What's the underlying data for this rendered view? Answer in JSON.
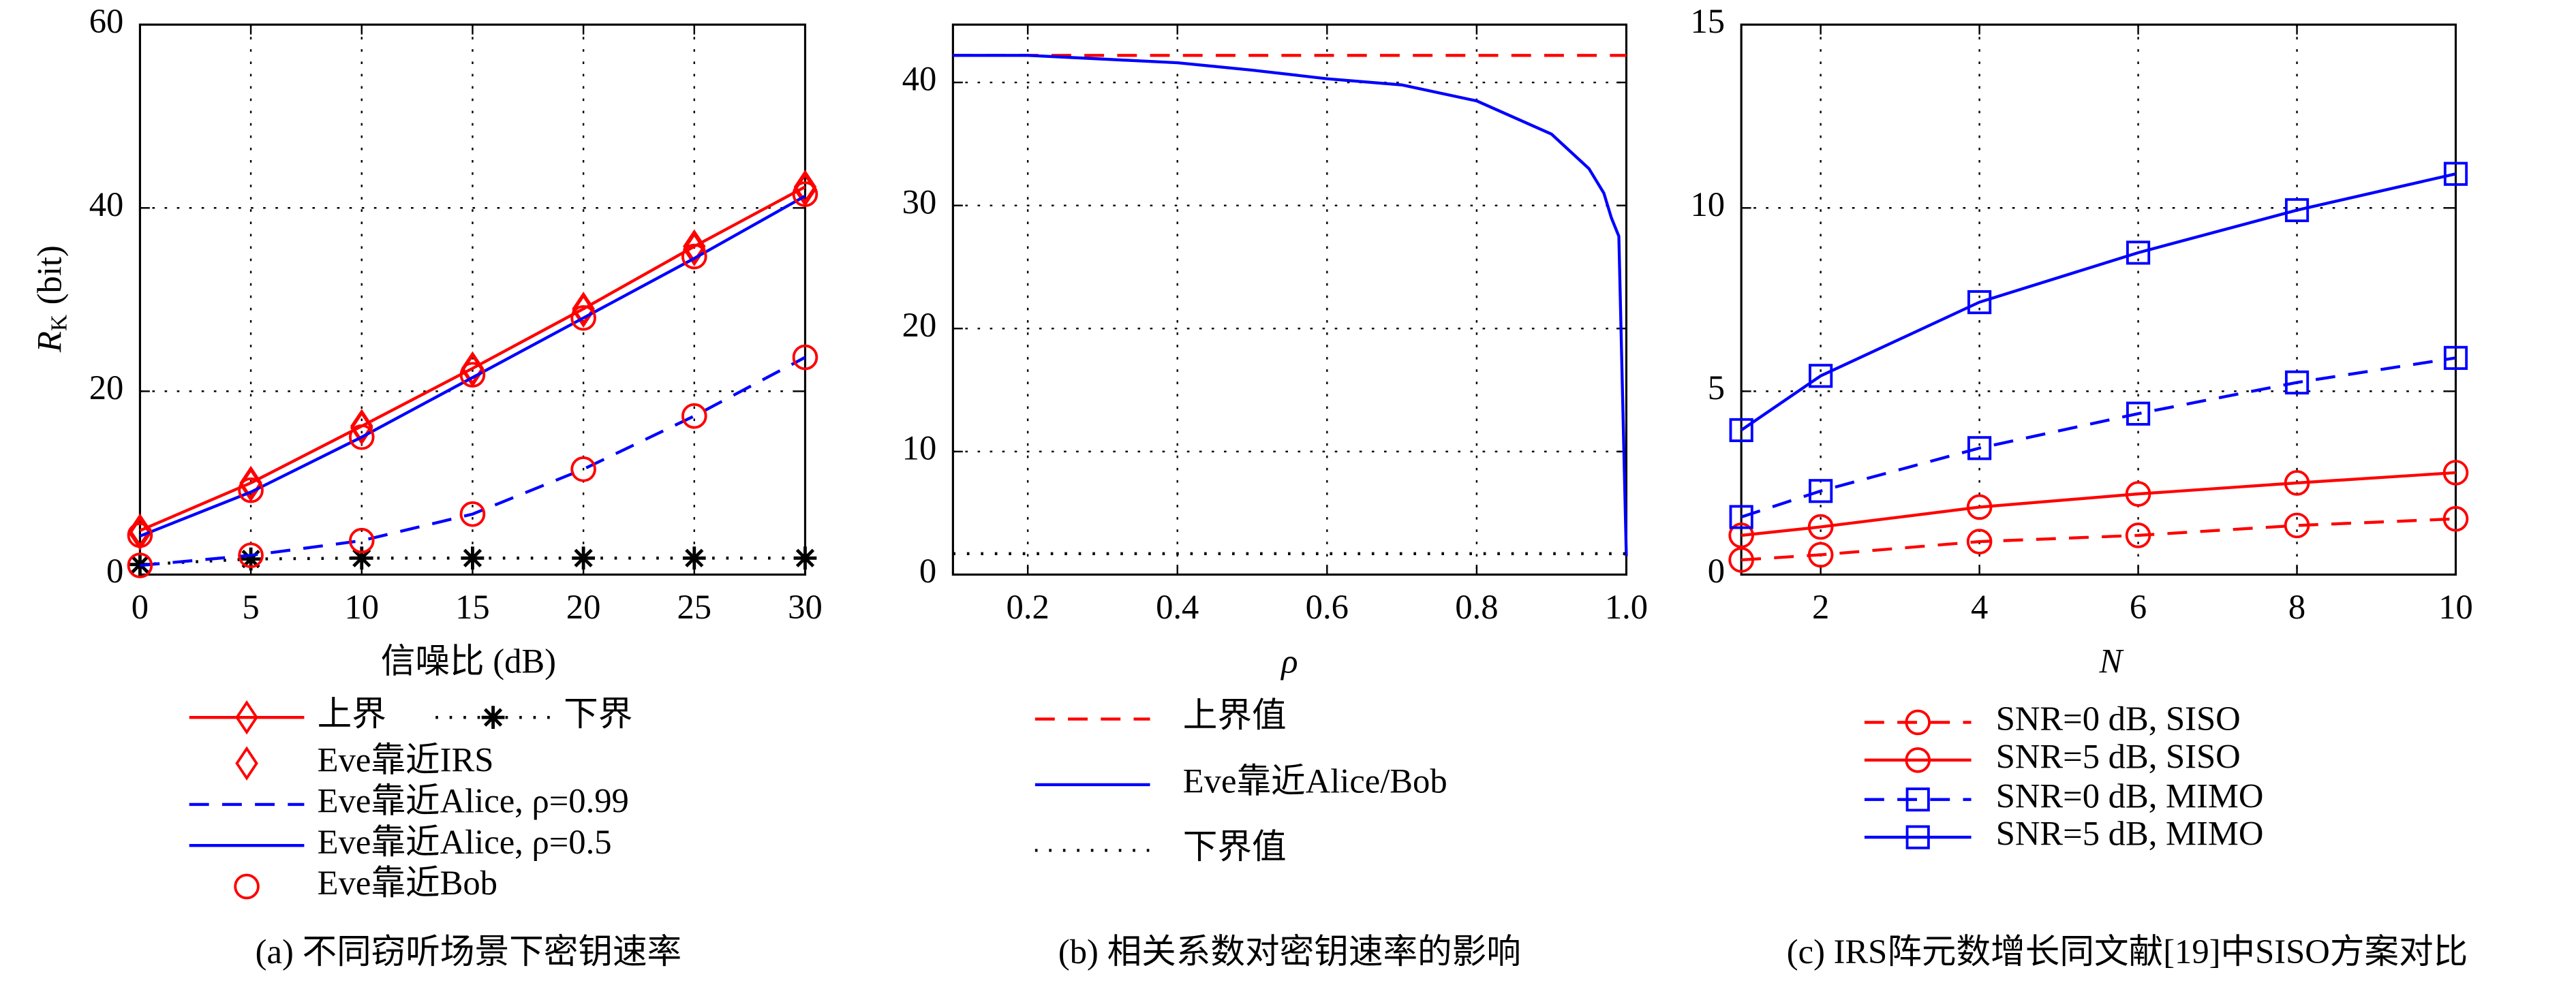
{
  "chart_data": [
    {
      "type": "line",
      "x": [
        0,
        5,
        10,
        15,
        20,
        25,
        30
      ],
      "xlim": [
        0,
        30
      ],
      "ylim": [
        0,
        60
      ],
      "xticks": [
        0,
        5,
        10,
        15,
        20,
        25,
        30
      ],
      "yticks": [
        0,
        20,
        40,
        60
      ],
      "grid": true,
      "xlabel": "信噪比 (dB)",
      "ylabel": {
        "symbol": "R",
        "subscript": "K",
        "unit": "(bit)"
      },
      "caption": "(a) 不同窃听场景下密钥速率",
      "legend": "below",
      "series": [
        {
          "name": "上界",
          "color": "#ff0000",
          "line": "solid",
          "marker": "diamond",
          "values": [
            4.8,
            10,
            16.2,
            22.5,
            29,
            35.8,
            42.3
          ]
        },
        {
          "name": "下界",
          "color": "#000000",
          "line": "dotted",
          "marker": "star",
          "values": [
            1.1,
            1.7,
            1.8,
            1.8,
            1.8,
            1.8,
            1.8
          ]
        },
        {
          "name": "Eve靠近IRS",
          "color": "#ff0000",
          "line": "none",
          "marker": "diamond",
          "values": [
            4.5,
            9.8,
            16,
            22.3,
            28.8,
            35.5,
            42
          ]
        },
        {
          "name": "Eve靠近Alice, ρ=0.99",
          "color": "#0000ff",
          "line": "dashed",
          "marker": "circle",
          "marker_color": "#ff0000",
          "values": [
            1,
            2.1,
            3.7,
            6.6,
            11.5,
            17.3,
            23.7
          ]
        },
        {
          "name": "Eve靠近Alice, ρ=0.5",
          "color": "#0000ff",
          "line": "solid",
          "marker": "none",
          "values": [
            4.2,
            9,
            15,
            21.5,
            28,
            34.5,
            41.3
          ]
        },
        {
          "name": "Eve靠近Bob",
          "color": "#ff0000",
          "line": "none",
          "marker": "circle",
          "values": [
            4.3,
            9.2,
            15,
            21.8,
            28,
            34.7,
            41.5
          ]
        }
      ]
    },
    {
      "type": "line",
      "xlim": [
        0.1,
        1
      ],
      "ylim": [
        0,
        44.7
      ],
      "xticks": [
        0.2,
        0.4,
        0.6,
        0.8,
        {
          "value": 1,
          "label": "1.0"
        }
      ],
      "yticks": [
        0,
        10,
        20,
        30,
        40
      ],
      "grid": true,
      "xlabel": "ρ",
      "caption": "(b) 相关系数对密钥速率的影响",
      "legend": "below",
      "series": [
        {
          "name": "上界值",
          "color": "#ff0000",
          "line": "dashed",
          "marker": "none",
          "x": [
            0.1,
            1
          ],
          "values": [
            42.2,
            42.2
          ]
        },
        {
          "name": "Eve靠近Alice/Bob",
          "color": "#0000ff",
          "line": "solid",
          "marker": "none",
          "x": [
            0.1,
            0.2,
            0.3,
            0.4,
            0.5,
            0.6,
            0.7,
            0.8,
            0.9,
            0.95,
            0.97,
            0.98,
            0.99,
            1
          ],
          "values": [
            42.2,
            42.2,
            41.9,
            41.6,
            41,
            40.3,
            39.8,
            38.5,
            35.8,
            33,
            31,
            29,
            27.5,
            1.5
          ]
        },
        {
          "name": "下界值",
          "color": "#000000",
          "line": "dotted",
          "marker": "none",
          "x": [
            0.1,
            1
          ],
          "values": [
            1.7,
            1.7
          ]
        }
      ]
    },
    {
      "type": "line",
      "x": [
        1,
        2,
        4,
        6,
        8,
        10
      ],
      "xlim": [
        1,
        10
      ],
      "ylim": [
        0,
        15
      ],
      "xticks": [
        2,
        4,
        6,
        8,
        10
      ],
      "yticks": [
        0,
        5,
        10,
        15
      ],
      "grid": true,
      "xlabel": "N",
      "caption": "(c) IRS阵元数增长同文献[19]中SISO方案对比",
      "legend": "below",
      "series": [
        {
          "name": "SNR=0 dB, SISO",
          "color": "#ff0000",
          "line": "dashed",
          "marker": "circle",
          "values": [
            0.4,
            0.54,
            0.9,
            1.07,
            1.34,
            1.52
          ]
        },
        {
          "name": "SNR=5 dB, SISO",
          "color": "#ff0000",
          "line": "solid",
          "marker": "circle",
          "values": [
            1.07,
            1.3,
            1.84,
            2.2,
            2.5,
            2.78
          ]
        },
        {
          "name": "SNR=0 dB, MIMO",
          "color": "#0000ff",
          "line": "dashed",
          "marker": "square",
          "values": [
            1.57,
            2.28,
            3.45,
            4.39,
            5.24,
            5.91
          ]
        },
        {
          "name": "SNR=5 dB, MIMO",
          "color": "#0000ff",
          "line": "solid",
          "marker": "square",
          "values": [
            3.94,
            5.42,
            7.43,
            8.78,
            9.94,
            10.93
          ]
        }
      ]
    }
  ]
}
